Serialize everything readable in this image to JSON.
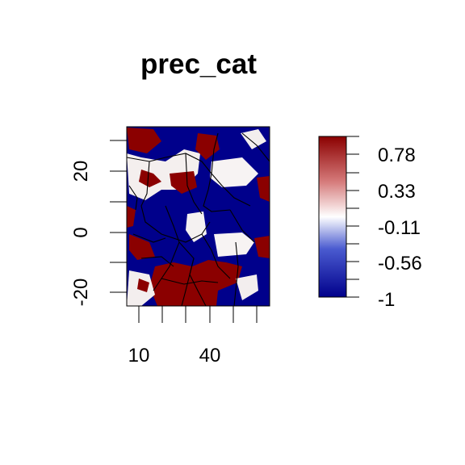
{
  "title": "prec_cat",
  "map": {
    "x_range": [
      3,
      63
    ],
    "y_range": [
      -25,
      35
    ],
    "x_ticks": [
      10,
      20,
      30,
      40,
      50,
      60
    ],
    "x_tick_labels_shown": [
      "10",
      "40"
    ],
    "y_ticks": [
      -25,
      -20,
      -15,
      -10,
      -5,
      0,
      5,
      10,
      15,
      20,
      25,
      30
    ],
    "y_tick_labels_shown": [
      "-20",
      "0",
      "20"
    ]
  },
  "legend": {
    "range": [
      -1,
      1
    ],
    "labels": [
      "0.78",
      "0.33",
      "-0.11",
      "-0.56",
      "-1"
    ],
    "colors": {
      "low": "#00008B",
      "mid": "#FFFFFF",
      "high": "#8B0000"
    }
  }
}
